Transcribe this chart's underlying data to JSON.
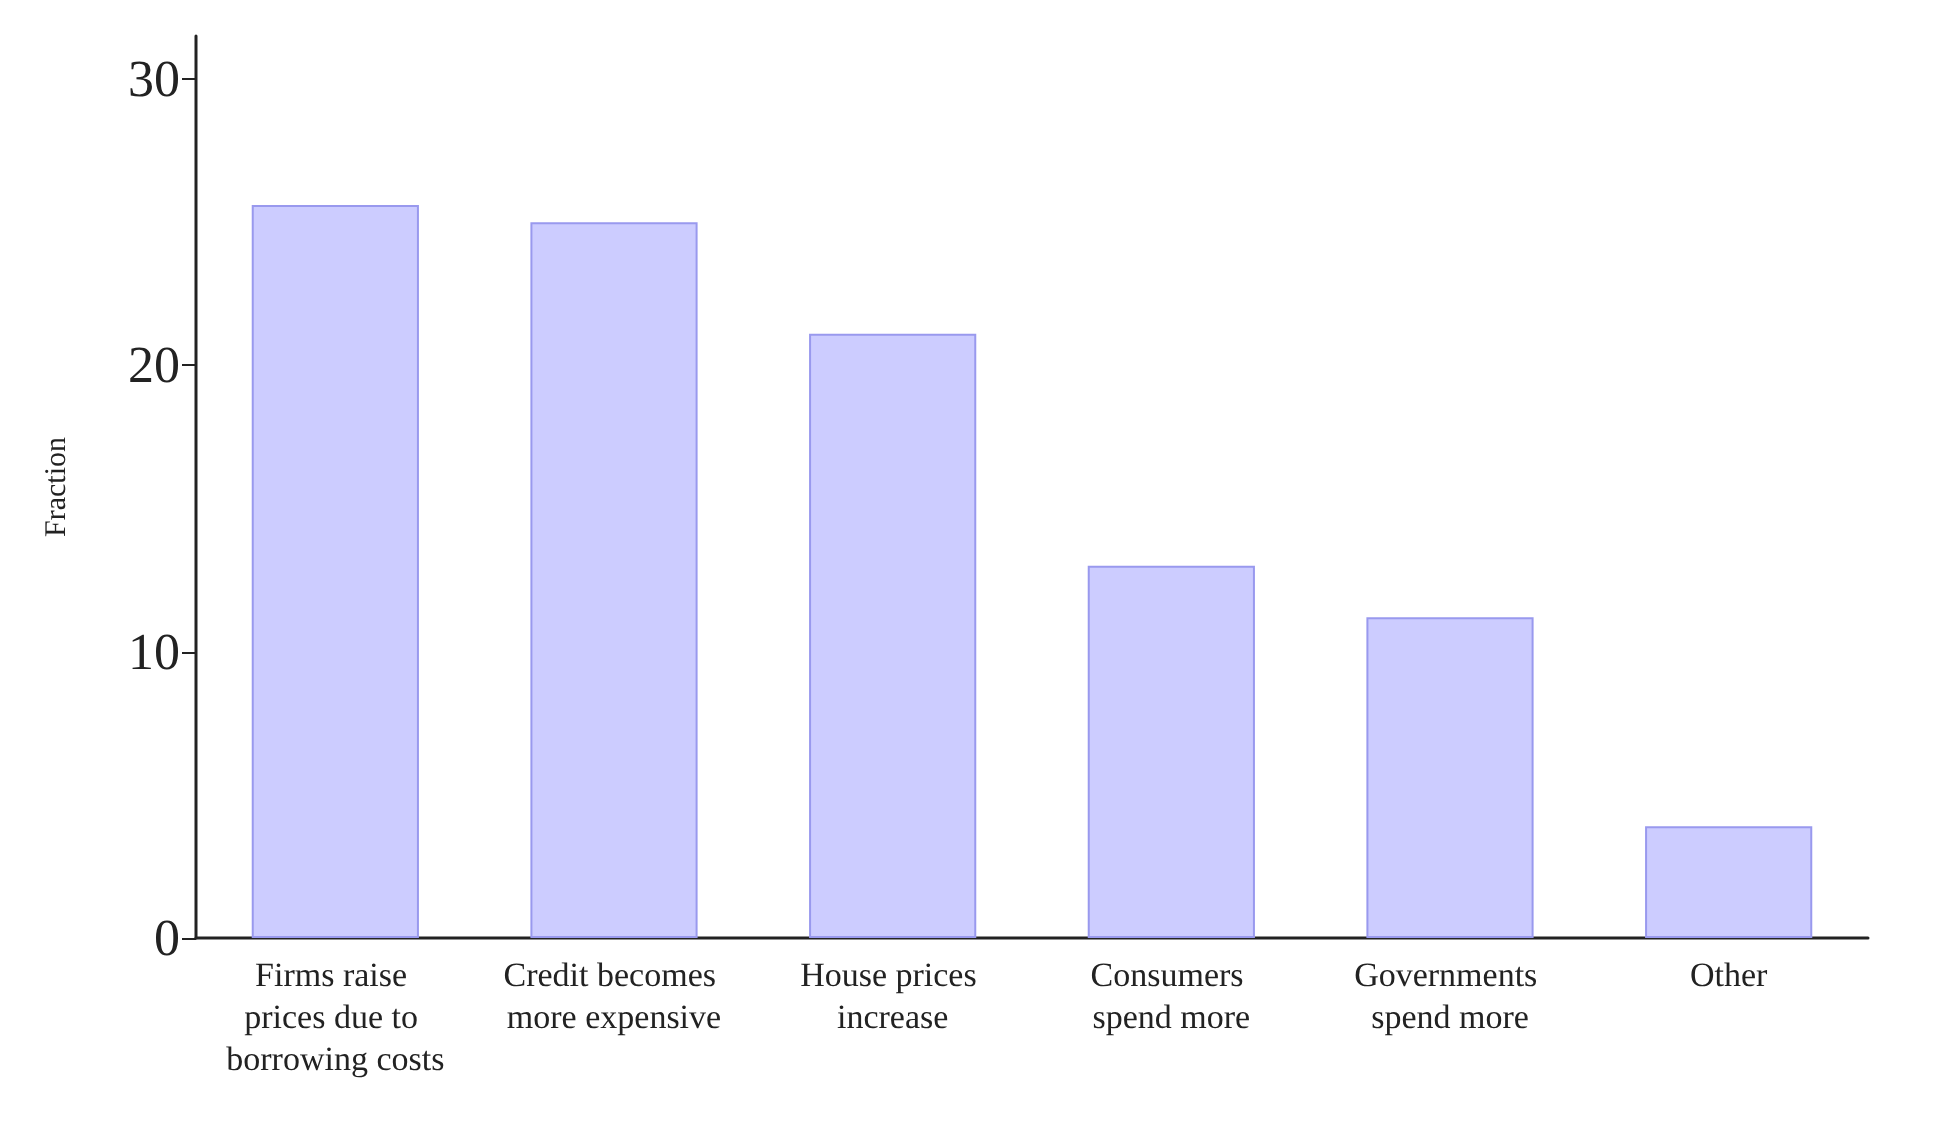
{
  "chart_data": {
    "type": "bar",
    "ylabel": "Fraction",
    "categories": [
      "Firms raise prices due to borrowing costs",
      "Credit becomes more expensive",
      "House prices increase",
      "Consumers spend more",
      "Governments spend more",
      "Other"
    ],
    "values": [
      25.6,
      25.0,
      21.1,
      13.0,
      11.2,
      3.9
    ],
    "color": "#ccccff",
    "ylim": [
      0,
      31.5
    ],
    "yticks": [
      0,
      10,
      20,
      30
    ],
    "grid": false
  }
}
